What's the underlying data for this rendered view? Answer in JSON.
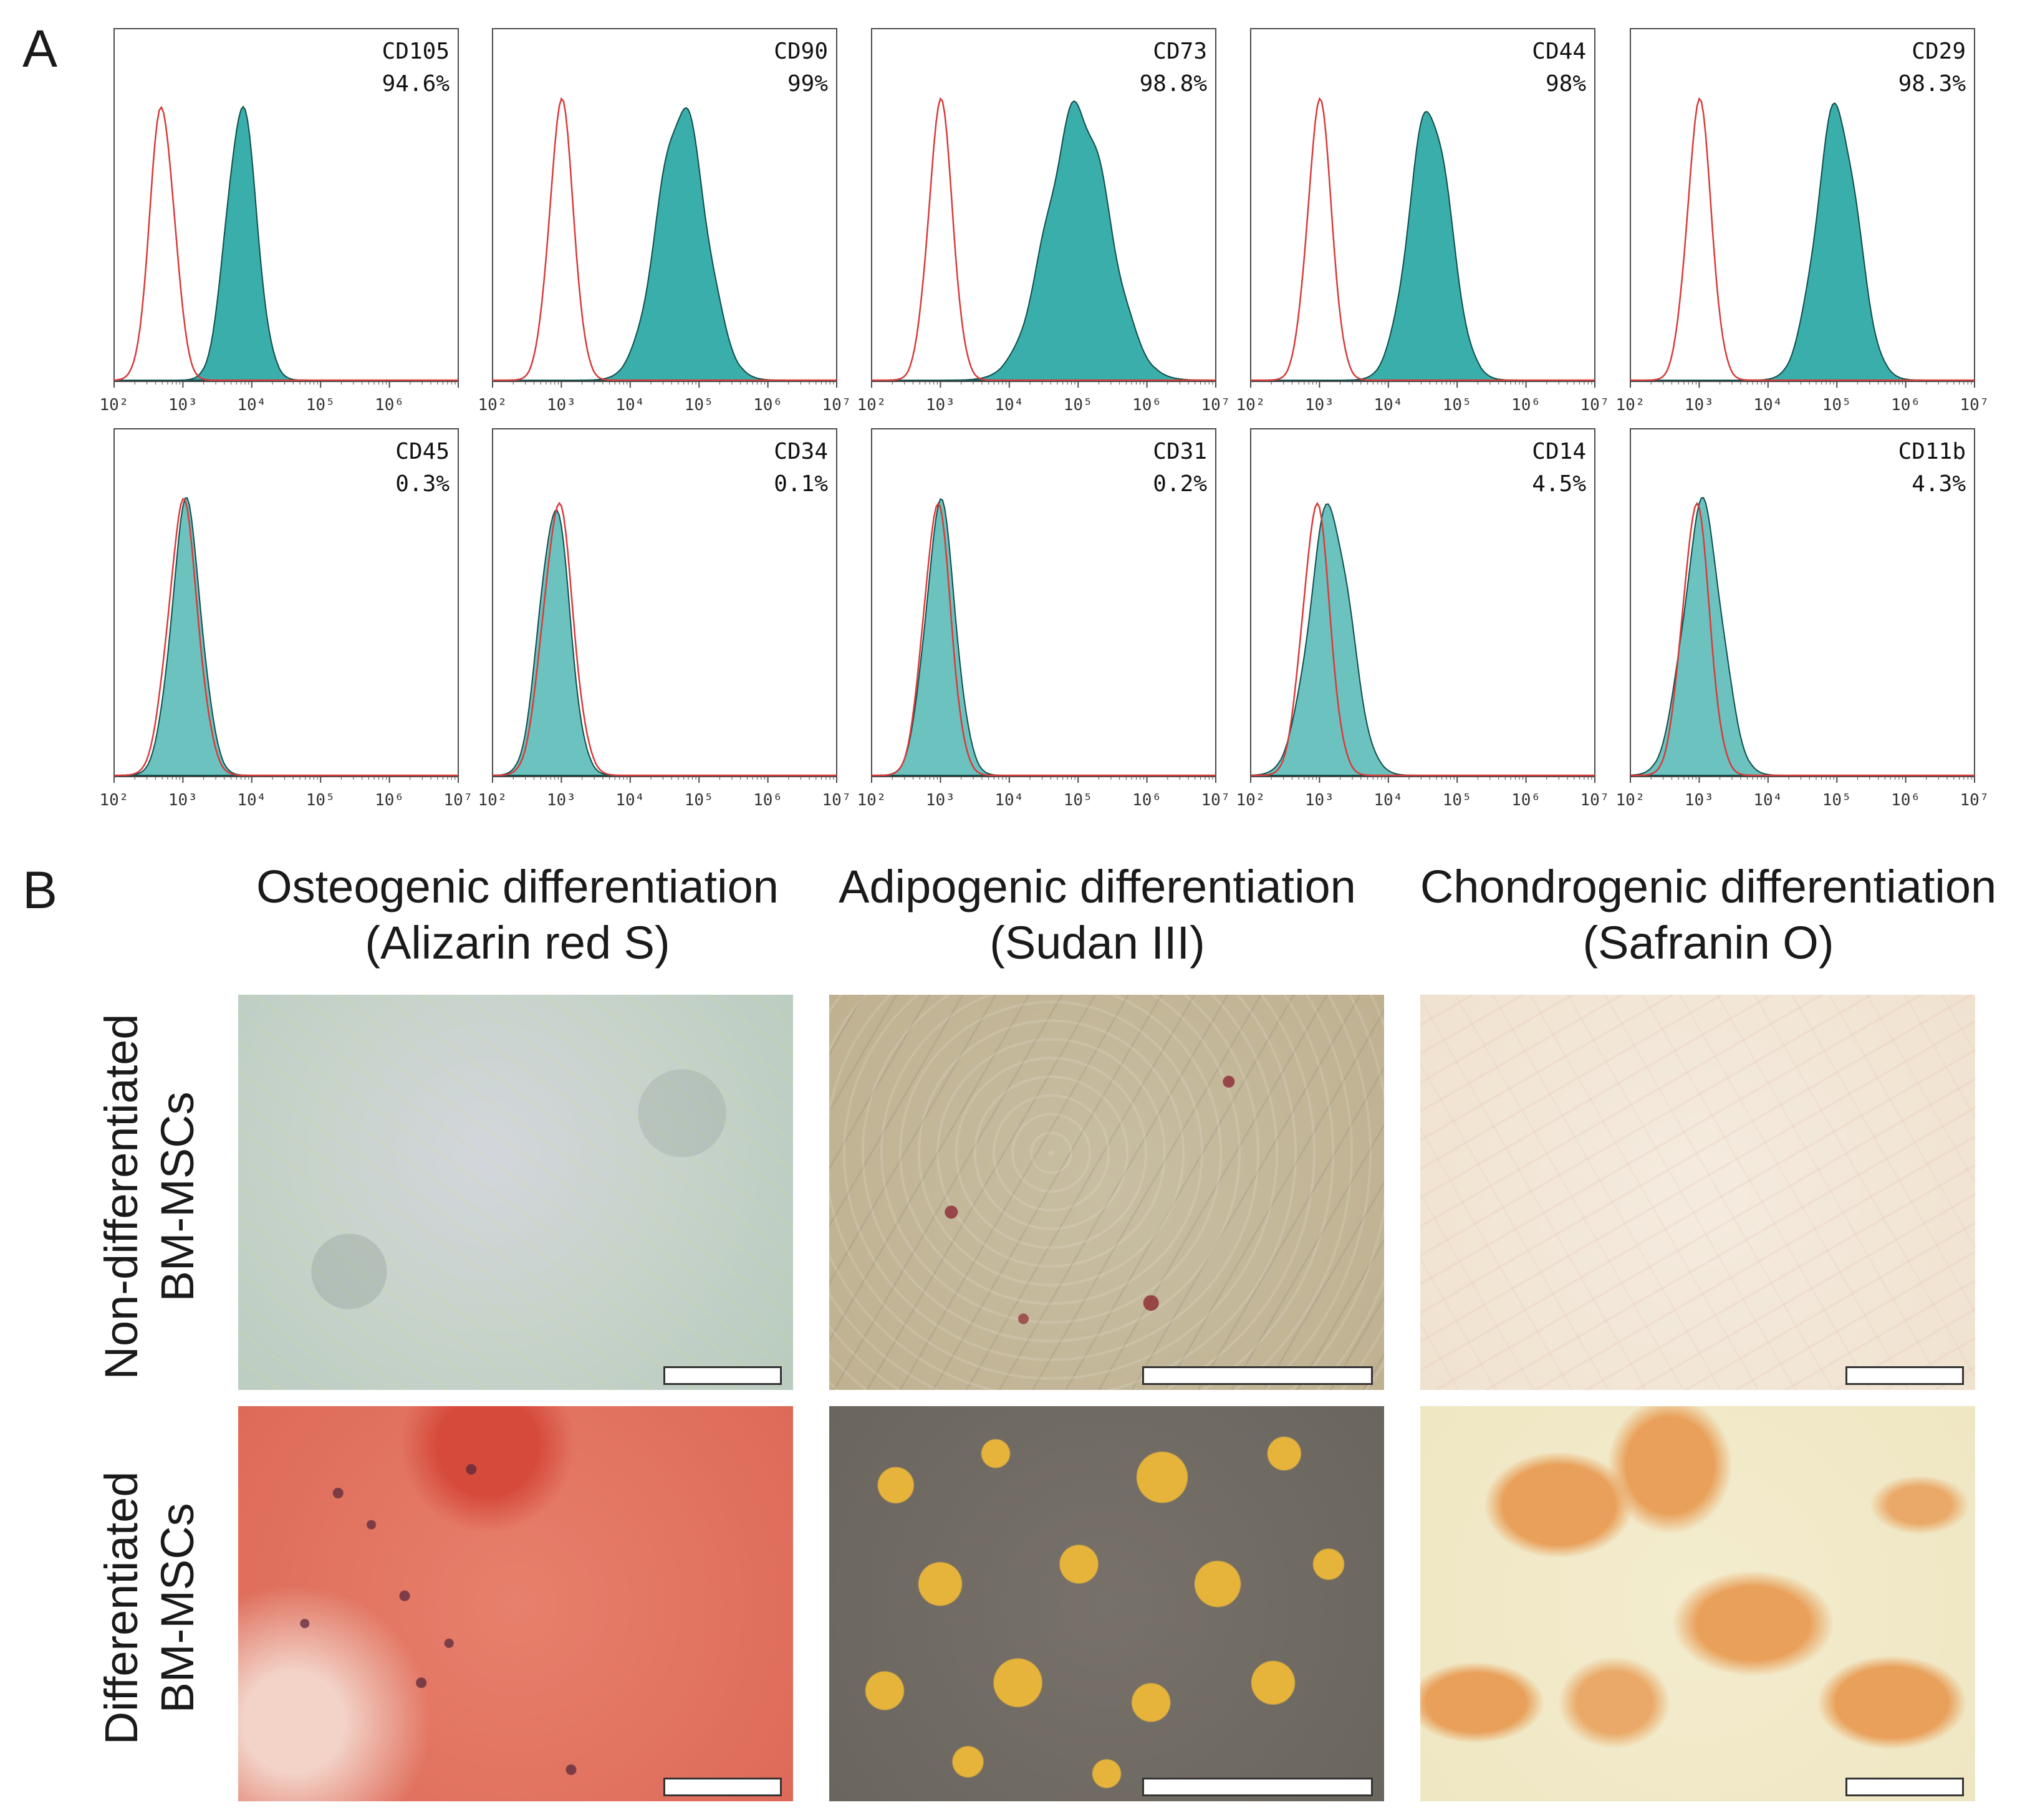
{
  "panel_a_label": "A",
  "panel_b_label": "B",
  "flow_histograms": {
    "x_ticks": [
      "10²",
      "10³",
      "10⁴",
      "10⁵",
      "10⁶",
      "10⁷"
    ],
    "colors": {
      "control": "#d93a3a",
      "stained_fill": "#3aaeaa",
      "stained_edge": "#0f4f4c"
    },
    "row1": [
      {
        "marker": "CD105",
        "percent": "94.6%",
        "x_ticks": [
          "10²",
          "10³",
          "10⁴",
          "10⁵",
          "10⁶"
        ],
        "control_log_mean": 2.7,
        "control_width": 0.18,
        "stained_log_mean": 3.85,
        "stained_width": 0.22
      },
      {
        "marker": "CD90",
        "percent": "99%",
        "control_log_mean": 3.0,
        "control_width": 0.18,
        "stained_log_mean": 4.75,
        "stained_width": 0.35
      },
      {
        "marker": "CD73",
        "percent": "98.8%",
        "control_log_mean": 3.0,
        "control_width": 0.18,
        "stained_log_mean": 5.0,
        "stained_width": 0.45
      },
      {
        "marker": "CD44",
        "percent": "98%",
        "control_log_mean": 3.0,
        "control_width": 0.18,
        "stained_log_mean": 4.6,
        "stained_width": 0.3
      },
      {
        "marker": "CD29",
        "percent": "98.3%",
        "control_log_mean": 3.0,
        "control_width": 0.18,
        "stained_log_mean": 5.0,
        "stained_width": 0.3
      }
    ],
    "row2": [
      {
        "marker": "CD45",
        "percent": "0.3%",
        "control_log_mean": 3.0,
        "control_width": 0.22,
        "stained_log_mean": 3.05,
        "stained_width": 0.22
      },
      {
        "marker": "CD34",
        "percent": "0.1%",
        "control_log_mean": 2.95,
        "control_width": 0.22,
        "stained_log_mean": 2.9,
        "stained_width": 0.22
      },
      {
        "marker": "CD31",
        "percent": "0.2%",
        "control_log_mean": 2.95,
        "control_width": 0.2,
        "stained_log_mean": 3.0,
        "stained_width": 0.22
      },
      {
        "marker": "CD14",
        "percent": "4.5%",
        "control_log_mean": 2.95,
        "control_width": 0.2,
        "stained_log_mean": 3.15,
        "stained_width": 0.3
      },
      {
        "marker": "CD11b",
        "percent": "4.3%",
        "control_log_mean": 2.95,
        "control_width": 0.2,
        "stained_log_mean": 3.05,
        "stained_width": 0.28
      }
    ]
  },
  "differentiation": {
    "columns": [
      {
        "title": "Osteogenic differentiation",
        "stain": "(Alizarin red S)"
      },
      {
        "title": "Adipogenic differentiation",
        "stain": "(Sudan III)"
      },
      {
        "title": "Chondrogenic differentiation",
        "stain": "(Safranin O)"
      }
    ],
    "rows": [
      {
        "line1": "Non-differentiated",
        "line2": "BM-MSCs"
      },
      {
        "line1": "Differentiated",
        "line2": "BM-MSCs"
      }
    ],
    "image_colors": {
      "osteo_non": "#c9d4cf",
      "osteo_diff": "#e0705e",
      "adipo_non": "#cbbf9e",
      "adipo_diff": "#6f6a62",
      "chondro_non": "#f3e8d8",
      "chondro_diff": "#f1e9c9"
    }
  }
}
